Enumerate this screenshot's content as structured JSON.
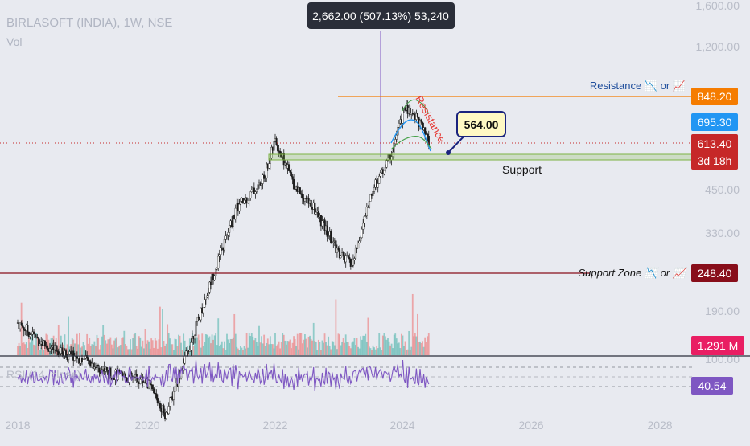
{
  "header": {
    "symbol_title": "BIRLASOFT (INDIA), 1W, NSE",
    "volume_label": "Vol",
    "rsi_label": "RSI (14, close)"
  },
  "measure_tooltip": "2,662.00 (507.13%) 53,240",
  "annotations": {
    "resistance_label": "Resistance 📉 or 📈",
    "resistance_curve_label": "Resistance",
    "support_label": "Support",
    "support_zone_label": "Support Zone 📉 or 📈",
    "callout_value": "564.00"
  },
  "price_axis": {
    "ticks": [
      "1,600.00",
      "1,200.00",
      "450.00",
      "330.00",
      "190.00",
      "100.00"
    ],
    "badges": {
      "resistance": "848.20",
      "ma": "695.30",
      "last_price": "613.40",
      "countdown": "3d 18h",
      "support_zone": "248.40",
      "volume": "1.291 M",
      "rsi": "40.54"
    }
  },
  "time_axis": {
    "ticks": [
      "2018",
      "2020",
      "2022",
      "2024",
      "2026",
      "2028"
    ]
  },
  "colors": {
    "background": "#e8eaf0",
    "up_candle": "#26a69a",
    "down_candle": "#ef5350",
    "resistance_line": "#f57c00",
    "ma_blue": "#2196f3",
    "last_price": "#c62828",
    "support_zone": "#880e1a",
    "volume": "#e91e63",
    "rsi": "#7e57c2",
    "support_box": "#7cb342"
  },
  "chart_data": {
    "type": "candlestick",
    "title": "BIRLASOFT (INDIA), 1W, NSE",
    "scale": "log",
    "x": [
      2018.0,
      2018.5,
      2019.0,
      2019.5,
      2020.0,
      2020.3,
      2020.6,
      2021.0,
      2021.4,
      2021.8,
      2022.0,
      2022.3,
      2022.6,
      2023.0,
      2023.2,
      2023.5,
      2023.8,
      2024.0,
      2024.2,
      2024.4
    ],
    "close": [
      180,
      150,
      140,
      125,
      120,
      95,
      140,
      240,
      400,
      480,
      640,
      470,
      400,
      290,
      270,
      450,
      580,
      800,
      760,
      613.4
    ],
    "levels": {
      "resistance": 848.2,
      "ma": 695.3,
      "last_price": 613.4,
      "callout": 564.0,
      "support_zone": 248.4
    },
    "support_box": [
      590,
      640
    ],
    "ma_series": [
      {
        "color": "blue",
        "x": [
          2023.7,
          2023.9,
          2024.1,
          2024.3,
          2024.45
        ],
        "values": [
          590,
          680,
          740,
          720,
          640
        ]
      },
      {
        "color": "green",
        "x": [
          2023.7,
          2023.9,
          2024.1,
          2024.3,
          2024.45
        ],
        "values": [
          560,
          660,
          800,
          780,
          700
        ]
      }
    ],
    "volume_last": "1.291 M",
    "rsi": {
      "label": "RSI (14, close)",
      "last": 40.54,
      "levels": [
        70,
        50,
        30
      ]
    }
  }
}
